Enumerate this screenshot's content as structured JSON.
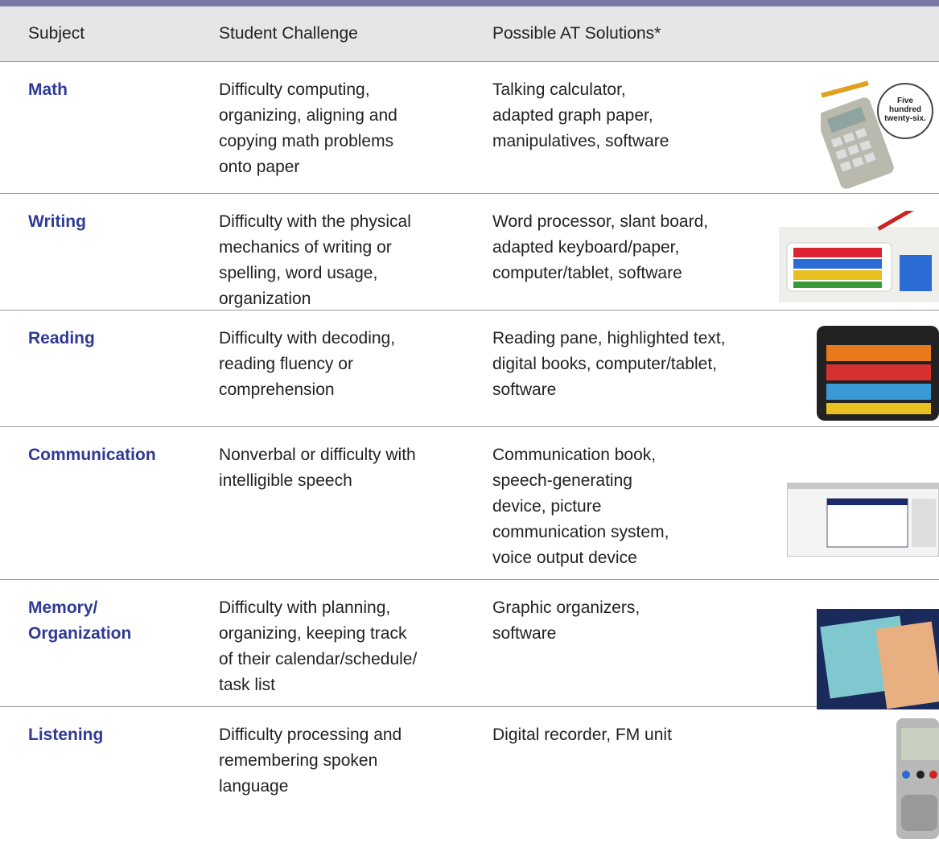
{
  "table": {
    "header": [
      "Subject",
      "Student Challenge",
      "Possible AT Solutions*"
    ],
    "rows": [
      {
        "subject": [
          "Math"
        ],
        "challenge": [
          "Difficulty computing,",
          "organizing, aligning and",
          "copying math problems",
          "onto paper"
        ],
        "solutions": [
          "Talking calculator,",
          "adapted graph paper,",
          "manipulatives, software"
        ]
      },
      {
        "subject": [
          "Writing"
        ],
        "challenge": [
          "Difficulty with the physical",
          "mechanics of writing or",
          "spelling, word usage,",
          "organization"
        ],
        "solutions": [
          "Word processor, slant board,",
          "adapted keyboard/paper,",
          "computer/tablet, software"
        ]
      },
      {
        "subject": [
          "Reading"
        ],
        "challenge": [
          "Difficulty with decoding,",
          "reading fluency or",
          "comprehension"
        ],
        "solutions": [
          "Reading pane, highlighted text,",
          "digital books, computer/tablet,",
          "software"
        ]
      },
      {
        "subject": [
          "Communication"
        ],
        "challenge": [
          "Nonverbal or difficulty with",
          "intelligible speech"
        ],
        "solutions": [
          "Communication book,",
          "speech-generating",
          "device, picture",
          "communication system,",
          "voice output device"
        ]
      },
      {
        "subject": [
          "Memory/",
          "Organization"
        ],
        "challenge": [
          "Difficulty with planning,",
          "organizing, keeping track",
          "of their calendar/schedule/",
          "task list"
        ],
        "solutions": [
          "Graphic organizers,",
          "software"
        ]
      },
      {
        "subject": [
          "Listening"
        ],
        "challenge": [
          "Difficulty processing and",
          "remembering spoken",
          "language"
        ],
        "solutions": [
          "Digital recorder, FM unit"
        ]
      }
    ]
  },
  "images": {
    "calculator_bubble": [
      "Five",
      "hundred",
      "twenty-six."
    ]
  }
}
